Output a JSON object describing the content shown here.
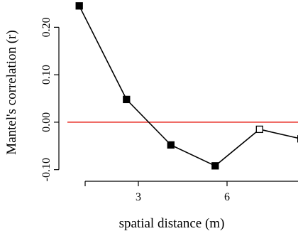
{
  "chart_data": {
    "type": "line",
    "xlabel": "spatial distance (m)",
    "ylabel": "Mantel's correlation (r)",
    "xlim": [
      0.6,
      8.4
    ],
    "ylim": [
      -0.105,
      0.25
    ],
    "x_ticks": [
      {
        "value": 1.2,
        "label": ""
      },
      {
        "value": 3,
        "label": "3"
      },
      {
        "value": 6,
        "label": "6"
      }
    ],
    "y_ticks": [
      {
        "value": -0.1,
        "label": "-0.10"
      },
      {
        "value": 0.0,
        "label": "0.00"
      },
      {
        "value": 0.1,
        "label": "0.10"
      },
      {
        "value": 0.2,
        "label": "0.20"
      }
    ],
    "reference_line": {
      "y": 0,
      "color": "#e8241c"
    },
    "series": [
      {
        "x": [
          1.0,
          2.6,
          4.1,
          5.6,
          7.1,
          8.5
        ],
        "y": [
          0.245,
          0.048,
          -0.048,
          -0.092,
          -0.015,
          -0.035
        ],
        "filled": [
          true,
          true,
          true,
          true,
          false,
          false
        ]
      }
    ]
  }
}
